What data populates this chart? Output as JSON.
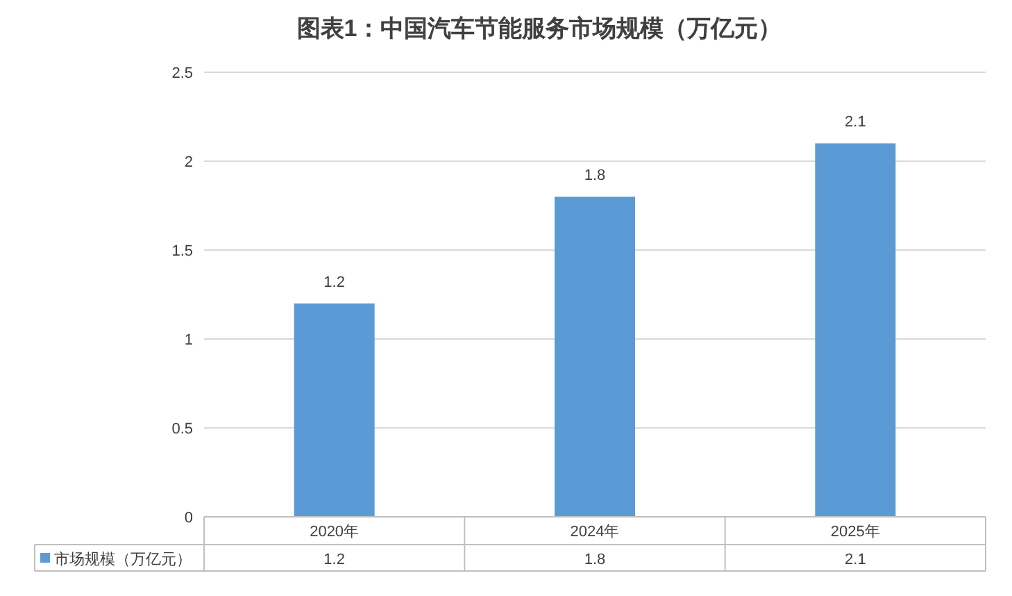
{
  "chart_data": {
    "type": "bar",
    "title": "图表1：中国汽车节能服务市场规模（万亿元）",
    "categories": [
      "2020年",
      "2024年",
      "2025年"
    ],
    "series": [
      {
        "name": "市场规模（万亿元）",
        "color": "#5b9bd5",
        "values": [
          1.2,
          1.8,
          2.1
        ]
      }
    ],
    "annotations": [
      "1.2",
      "1.8",
      "2.1"
    ],
    "ylim": [
      0,
      2.5
    ],
    "yticks": [
      0,
      0.5,
      1,
      1.5,
      2,
      2.5
    ],
    "grid": "y",
    "data_labels": true,
    "legend": "bottom"
  }
}
